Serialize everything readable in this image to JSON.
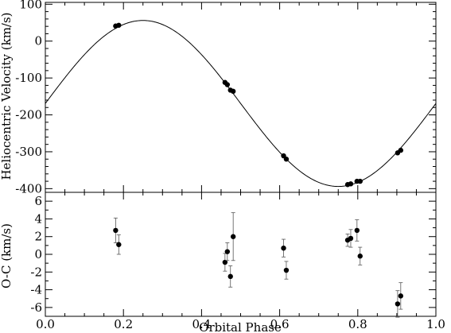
{
  "chart_data": [
    {
      "type": "scatter",
      "title": "",
      "xlabel": "",
      "ylabel": "Heliocentric Velocity (km/s)",
      "xlim": [
        0.0,
        1.0
      ],
      "ylim": [
        -410,
        105
      ],
      "yticks": [
        100,
        0,
        -100,
        -200,
        -300,
        -400
      ],
      "ytick_labels": [
        "100",
        "0",
        "-100",
        "-200",
        "-300",
        "-400"
      ],
      "grid": false,
      "model_curve": {
        "type": "sine",
        "gamma": -169,
        "amplitude": 225,
        "phase_of_max": 0.25
      },
      "points": [
        {
          "x": 0.18,
          "y": 41
        },
        {
          "x": 0.188,
          "y": 43
        },
        {
          "x": 0.46,
          "y": -112
        },
        {
          "x": 0.466,
          "y": -118
        },
        {
          "x": 0.474,
          "y": -133
        },
        {
          "x": 0.481,
          "y": -136
        },
        {
          "x": 0.61,
          "y": -311
        },
        {
          "x": 0.617,
          "y": -320
        },
        {
          "x": 0.774,
          "y": -389
        },
        {
          "x": 0.782,
          "y": -387
        },
        {
          "x": 0.798,
          "y": -380
        },
        {
          "x": 0.806,
          "y": -380
        },
        {
          "x": 0.902,
          "y": -303
        },
        {
          "x": 0.91,
          "y": -296
        }
      ]
    },
    {
      "type": "scatter",
      "title": "",
      "xlabel": "Orbital Phase",
      "ylabel": "O-C (km/s)",
      "xlim": [
        0.0,
        1.0
      ],
      "ylim": [
        -7,
        7
      ],
      "xticks": [
        0.0,
        0.2,
        0.4,
        0.6,
        0.8,
        1.0
      ],
      "xtick_labels": [
        "0.0",
        "0.2",
        "0.4",
        "0.6",
        "0.8",
        "1.0"
      ],
      "yticks": [
        6,
        4,
        2,
        0,
        -2,
        -4,
        -6
      ],
      "ytick_labels": [
        "6",
        "4",
        "2",
        "0",
        "-2",
        "-4",
        "-6"
      ],
      "grid": false,
      "points": [
        {
          "x": 0.18,
          "y": 2.7,
          "err": 1.4
        },
        {
          "x": 0.188,
          "y": 1.1,
          "err": 1.1
        },
        {
          "x": 0.46,
          "y": -0.9,
          "err": 1.0
        },
        {
          "x": 0.466,
          "y": 0.3,
          "err": 1.0
        },
        {
          "x": 0.474,
          "y": -2.5,
          "err": 1.2
        },
        {
          "x": 0.481,
          "y": 2.0,
          "err": 2.7
        },
        {
          "x": 0.61,
          "y": 0.7,
          "err": 1.0
        },
        {
          "x": 0.617,
          "y": -1.8,
          "err": 1.0
        },
        {
          "x": 0.774,
          "y": 1.6,
          "err": 0.7
        },
        {
          "x": 0.782,
          "y": 1.8,
          "err": 1.0
        },
        {
          "x": 0.798,
          "y": 2.7,
          "err": 1.2
        },
        {
          "x": 0.806,
          "y": -0.2,
          "err": 1.0
        },
        {
          "x": 0.902,
          "y": -5.6,
          "err": 1.5
        },
        {
          "x": 0.91,
          "y": -4.7,
          "err": 1.5
        }
      ]
    }
  ]
}
